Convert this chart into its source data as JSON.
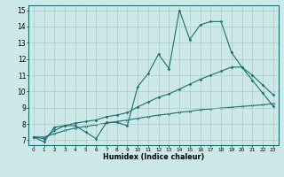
{
  "title": "",
  "xlabel": "Humidex (Indice chaleur)",
  "bg_color": "#cce8e8",
  "line_color": "#1a7070",
  "grid_color": "#b0c8c8",
  "xlim": [
    -0.5,
    23.5
  ],
  "ylim": [
    6.7,
    15.3
  ],
  "xticks": [
    0,
    1,
    2,
    3,
    4,
    5,
    6,
    7,
    8,
    9,
    10,
    11,
    12,
    13,
    14,
    15,
    16,
    17,
    18,
    19,
    20,
    21,
    22,
    23
  ],
  "yticks": [
    7,
    8,
    9,
    10,
    11,
    12,
    13,
    14,
    15
  ],
  "line1_x": [
    0,
    1,
    2,
    3,
    4,
    5,
    6,
    7,
    8,
    9,
    10,
    11,
    12,
    13,
    14,
    15,
    16,
    17,
    18,
    19,
    20,
    21,
    22,
    23
  ],
  "line1_y": [
    7.2,
    6.9,
    7.8,
    7.9,
    7.9,
    7.5,
    7.1,
    8.1,
    8.1,
    7.9,
    10.3,
    11.1,
    12.3,
    11.4,
    15.0,
    13.2,
    14.1,
    14.3,
    14.3,
    12.4,
    11.5,
    10.7,
    9.9,
    9.1
  ],
  "line2_x": [
    0,
    1,
    2,
    3,
    4,
    5,
    6,
    7,
    8,
    9,
    10,
    11,
    12,
    13,
    14,
    15,
    16,
    17,
    18,
    19,
    20,
    21,
    22,
    23
  ],
  "line2_y": [
    7.2,
    7.1,
    7.6,
    7.9,
    8.05,
    8.15,
    8.25,
    8.45,
    8.55,
    8.7,
    9.05,
    9.35,
    9.65,
    9.85,
    10.15,
    10.45,
    10.75,
    11.0,
    11.25,
    11.5,
    11.5,
    11.0,
    10.4,
    9.8
  ],
  "line3_x": [
    0,
    1,
    2,
    3,
    4,
    5,
    6,
    7,
    8,
    9,
    10,
    11,
    12,
    13,
    14,
    15,
    16,
    17,
    18,
    19,
    20,
    21,
    22,
    23
  ],
  "line3_y": [
    7.2,
    7.2,
    7.4,
    7.6,
    7.75,
    7.85,
    7.95,
    8.05,
    8.15,
    8.25,
    8.35,
    8.45,
    8.55,
    8.62,
    8.72,
    8.78,
    8.88,
    8.93,
    8.98,
    9.03,
    9.08,
    9.13,
    9.18,
    9.25
  ]
}
